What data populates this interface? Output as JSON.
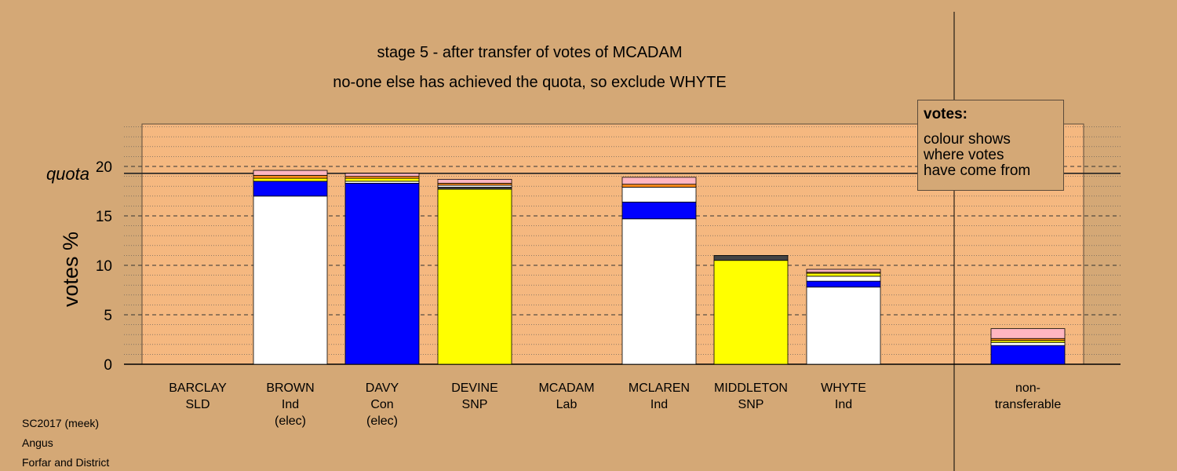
{
  "chart_data": {
    "type": "bar",
    "stacked": true,
    "title": "stage 5 - after transfer of votes of MCADAM",
    "subtitle": "no-one else has achieved the quota, so exclude WHYTE",
    "ylabel": "votes %",
    "ylim": [
      0,
      24
    ],
    "yticks": [
      0,
      5,
      10,
      15,
      20
    ],
    "quota": 19.3,
    "quota_label": "quota",
    "categories": [
      {
        "name": "BARCLAY",
        "party": "SLD",
        "note": ""
      },
      {
        "name": "BROWN",
        "party": "Ind",
        "note": "(elec)"
      },
      {
        "name": "DAVY",
        "party": "Con",
        "note": "(elec)"
      },
      {
        "name": "DEVINE",
        "party": "SNP",
        "note": ""
      },
      {
        "name": "MCADAM",
        "party": "Lab",
        "note": ""
      },
      {
        "name": "MCLAREN",
        "party": "Ind",
        "note": ""
      },
      {
        "name": "MIDDLETON",
        "party": "SNP",
        "note": ""
      },
      {
        "name": "WHYTE",
        "party": "Ind",
        "note": ""
      },
      {
        "name": "non-",
        "party": "transferable",
        "note": ""
      }
    ],
    "bars": [
      [],
      [
        {
          "v": 17.0,
          "c": "#ffffff"
        },
        {
          "v": 1.5,
          "c": "#0000ff"
        },
        {
          "v": 0.3,
          "c": "#ffff00"
        },
        {
          "v": 0.3,
          "c": "#ff8c1a"
        },
        {
          "v": 0.5,
          "c": "#ffb6c1"
        }
      ],
      [
        {
          "v": 18.3,
          "c": "#0000ff"
        },
        {
          "v": 0.2,
          "c": "#ffffff"
        },
        {
          "v": 0.3,
          "c": "#ffff00"
        },
        {
          "v": 0.2,
          "c": "#ff8c1a"
        },
        {
          "v": 0.3,
          "c": "#ffb6c1"
        }
      ],
      [
        {
          "v": 17.7,
          "c": "#ffff00"
        },
        {
          "v": 0.2,
          "c": "#444444"
        },
        {
          "v": 0.2,
          "c": "#ffffff"
        },
        {
          "v": 0.2,
          "c": "#ff8c1a"
        },
        {
          "v": 0.4,
          "c": "#ffb6c1"
        }
      ],
      [],
      [
        {
          "v": 14.7,
          "c": "#ffffff"
        },
        {
          "v": 1.7,
          "c": "#0000ff"
        },
        {
          "v": 1.5,
          "c": "#ffffff"
        },
        {
          "v": 0.3,
          "c": "#ff8c1a"
        },
        {
          "v": 0.7,
          "c": "#ffb6c1"
        }
      ],
      [
        {
          "v": 10.5,
          "c": "#ffff00"
        },
        {
          "v": 0.5,
          "c": "#444444"
        }
      ],
      [
        {
          "v": 7.8,
          "c": "#ffffff"
        },
        {
          "v": 0.6,
          "c": "#0000ff"
        },
        {
          "v": 0.5,
          "c": "#ffffff"
        },
        {
          "v": 0.3,
          "c": "#ffff00"
        },
        {
          "v": 0.1,
          "c": "#ff8c1a"
        },
        {
          "v": 0.3,
          "c": "#ffb6c1"
        }
      ],
      [
        {
          "v": 1.9,
          "c": "#0000ff"
        },
        {
          "v": 0.3,
          "c": "#ffffff"
        },
        {
          "v": 0.2,
          "c": "#ffff00"
        },
        {
          "v": 0.2,
          "c": "#ff8c1a"
        },
        {
          "v": 1.0,
          "c": "#ffb6c1"
        }
      ]
    ],
    "grid": "dotted minor, dashed major",
    "colors": {
      "background": "#d4a876",
      "plot_area": "#f5b880"
    }
  },
  "legend": {
    "title": "votes:",
    "text": "colour shows\nwhere votes\nhave come from"
  },
  "footer": {
    "line1": "SC2017 (meek)",
    "line2": "Angus",
    "line3": "Forfar and District"
  }
}
